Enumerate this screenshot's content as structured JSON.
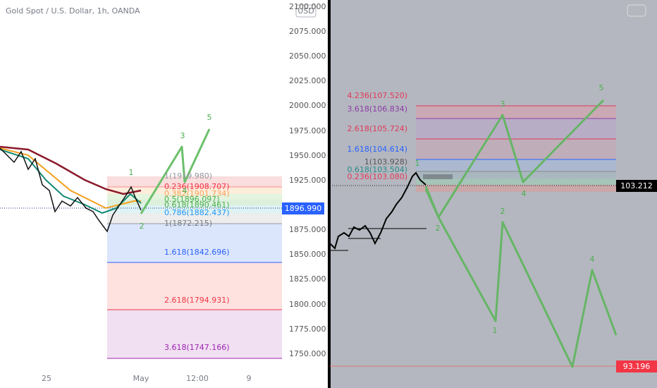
{
  "left_panel": {
    "title": "Gold Spot / U.S. Dollar, 1h, OANDA",
    "currency": "USD",
    "price_axis": [
      "2100.000",
      "2075.000",
      "2050.000",
      "2025.000",
      "2000.000",
      "1975.000",
      "1950.000",
      "1925.000",
      "1875.000",
      "1850.000",
      "1825.000",
      "1800.000",
      "1775.000",
      "1750.000"
    ],
    "time_axis": [
      "25",
      "May",
      "12:00",
      "9"
    ],
    "fib_levels": [
      "1(1919.980)",
      "0.236(1908.707)",
      "0.382(1901.734)",
      "0.5(1896.097)",
      "0.618(1890.461)",
      "0.786(1882.437)",
      "1(1872.215)",
      "1.618(1842.696)",
      "2.618(1794.931)",
      "3.618(1747.166)"
    ],
    "wave_labels": [
      "1",
      "2",
      "3",
      "4",
      "5"
    ],
    "last_price": "1896.990"
  },
  "right_panel": {
    "fib_levels": [
      "4.236(107.520)",
      "3.618(106.834)",
      "2.618(105.724)",
      "1.618(104.614)",
      "1(103.928)",
      "0.618(103.504)",
      "0.236(103.080)"
    ],
    "wave_labels_up": [
      "1",
      "2",
      "3",
      "4",
      "5"
    ],
    "wave_labels_down": [
      "2",
      "1",
      "4"
    ],
    "last_price": "103.212",
    "target_price": "93.196"
  }
}
